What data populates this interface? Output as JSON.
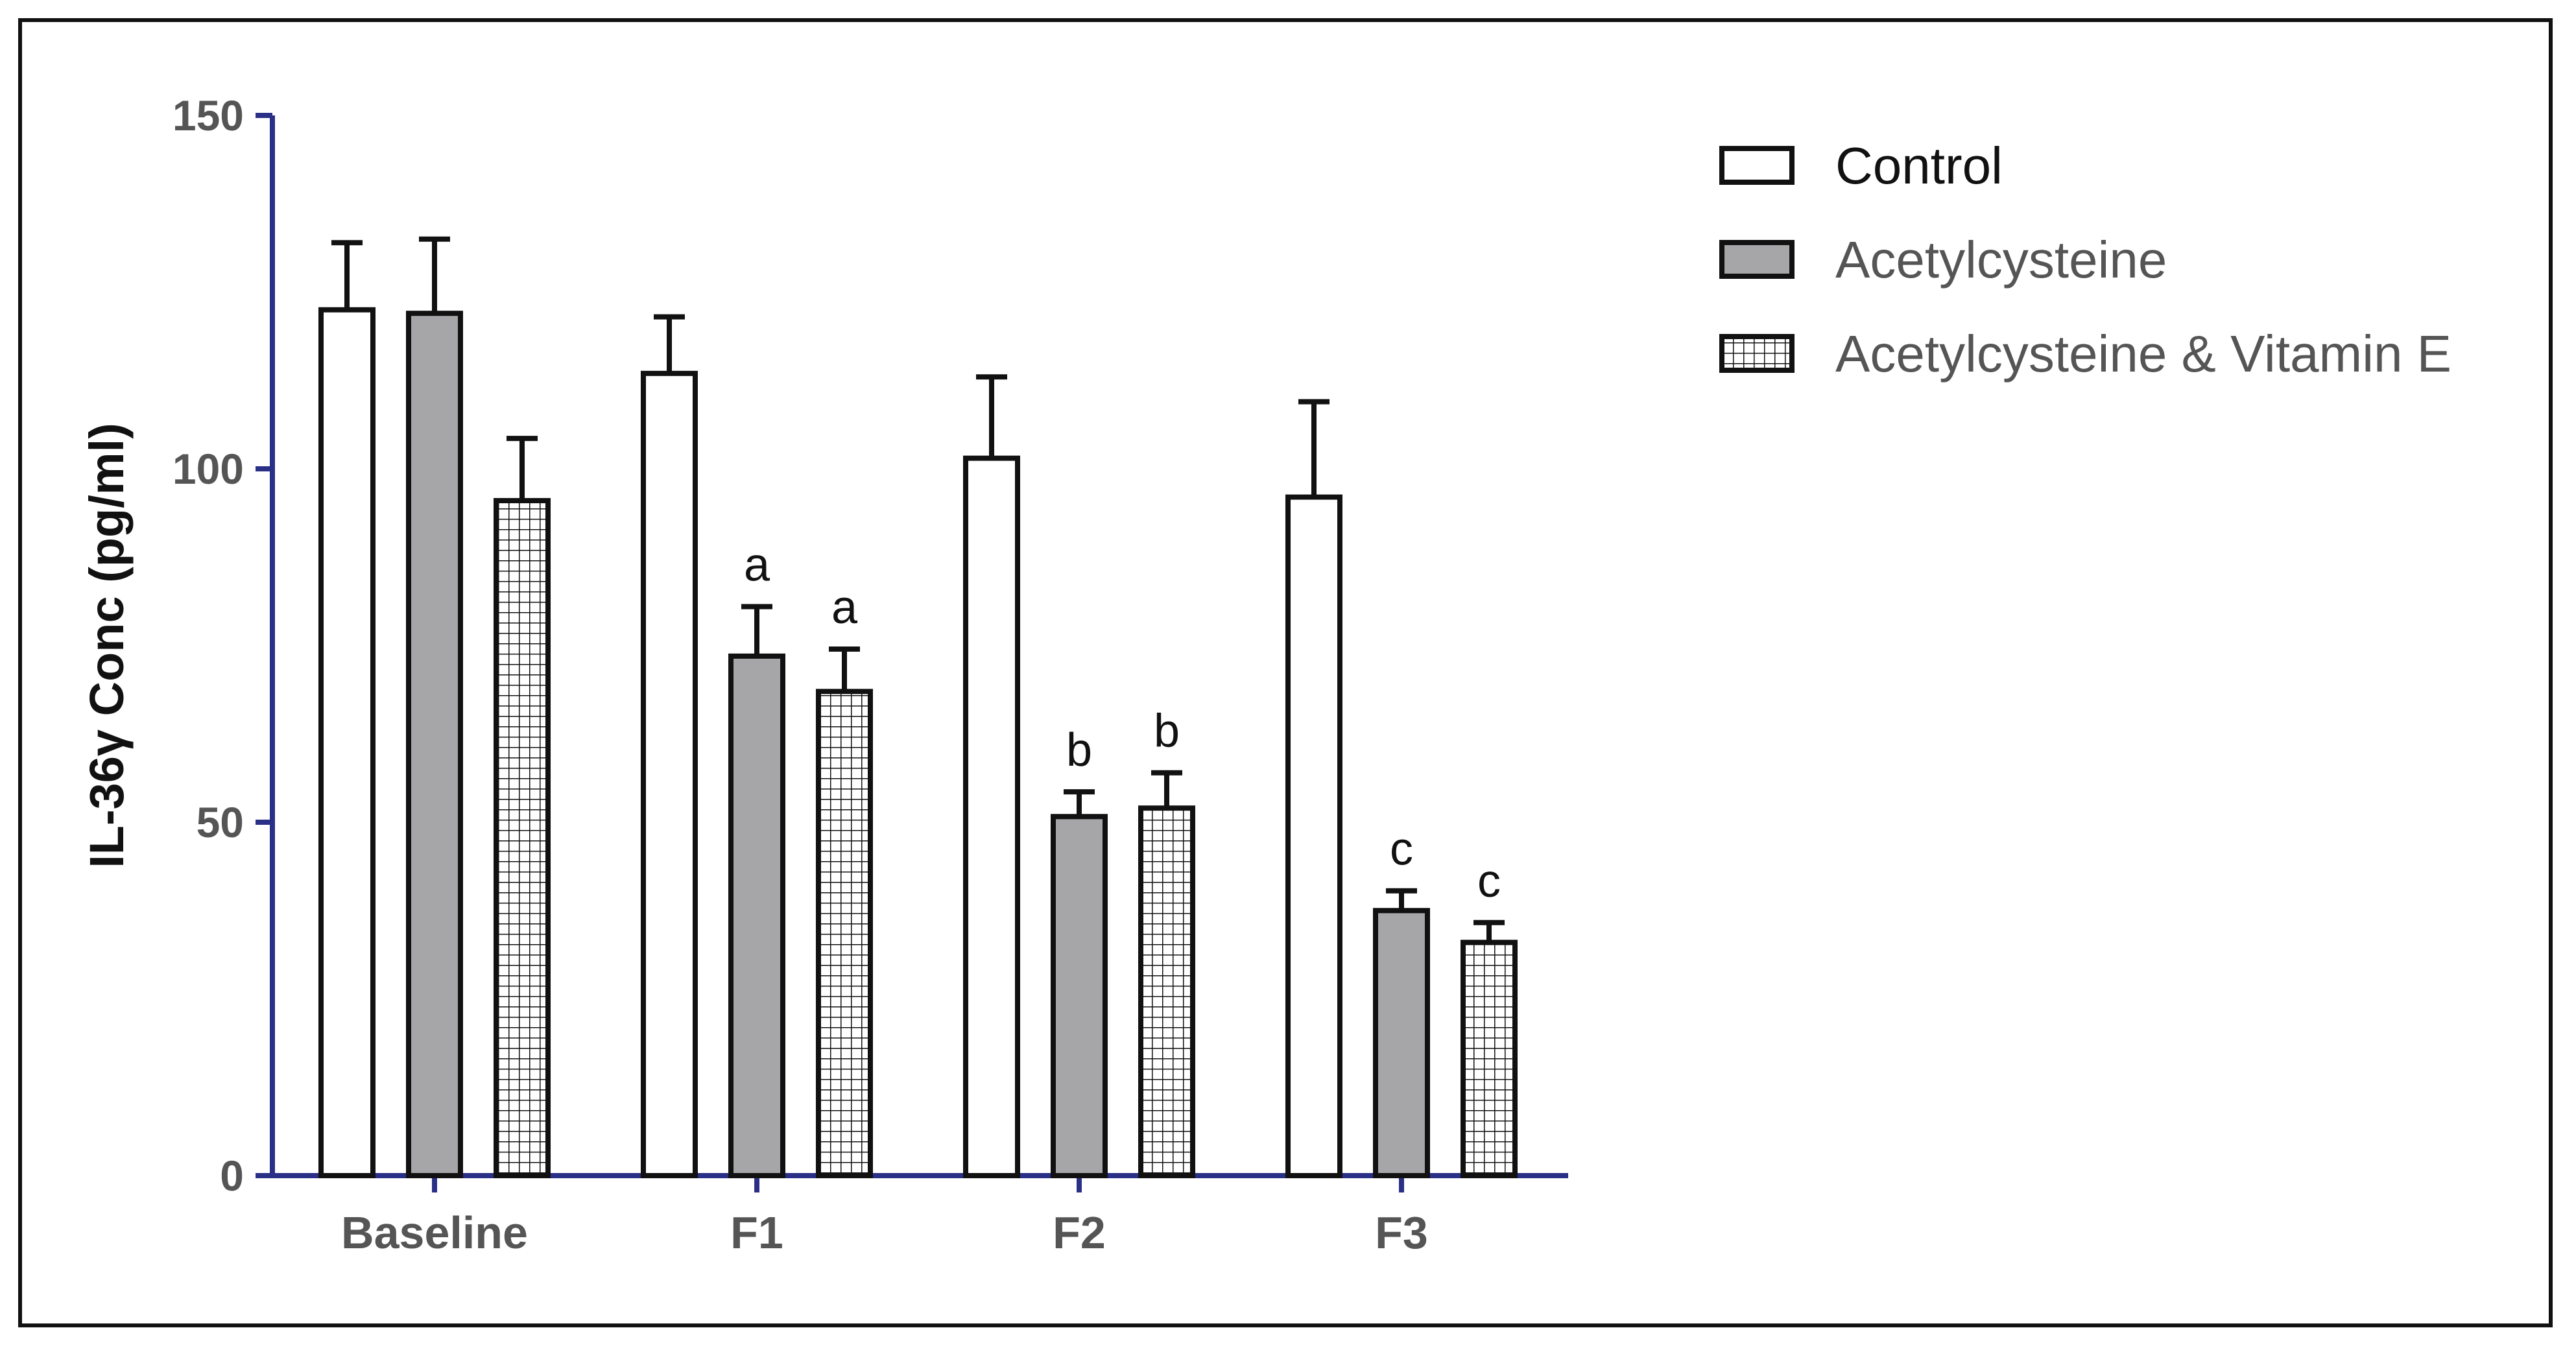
{
  "chart_data": {
    "type": "bar",
    "title": "",
    "xlabel": "",
    "ylabel": "IL-36γ Conc (pg/ml)",
    "ylim": [
      0,
      150
    ],
    "yticks": [
      0,
      50,
      100,
      150
    ],
    "categories": [
      "Baseline",
      "F1",
      "F2",
      "F3"
    ],
    "series": [
      {
        "name": "Control",
        "pattern": "empty",
        "fill": "#ffffff",
        "values": [
          122.5,
          113.5,
          101.5,
          96
        ],
        "errors": [
          9.5,
          8,
          11.5,
          13.5
        ],
        "annotations": [
          "",
          "",
          "",
          ""
        ]
      },
      {
        "name": "Acetylcysteine",
        "pattern": "solid",
        "fill": "#a6a6a8",
        "values": [
          122,
          73.5,
          50.8,
          37.5
        ],
        "errors": [
          10.5,
          7,
          3.5,
          2.8
        ],
        "annotations": [
          "",
          "a",
          "b",
          "c"
        ]
      },
      {
        "name": "Acetylcysteine & Vitamin E",
        "pattern": "grid",
        "fill": "#ffffff",
        "values": [
          95.5,
          68.5,
          52,
          33
        ],
        "errors": [
          8.8,
          6,
          5,
          2.8
        ],
        "annotations": [
          "",
          "a",
          "b",
          "c"
        ]
      }
    ],
    "legend_position": "top-right",
    "colors": {
      "axis": "#2b3087",
      "bar_stroke": "#111111",
      "tick_text": "#555555",
      "legend_text_first": "#111111",
      "legend_text": "#555555"
    }
  }
}
